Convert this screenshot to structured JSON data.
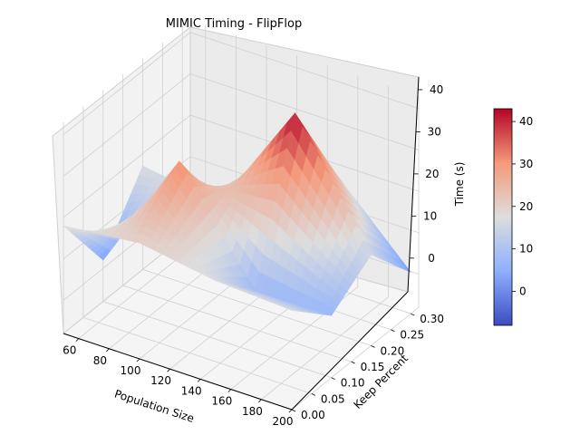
{
  "chart_data": {
    "type": "surface3d",
    "title": "MIMIC Timing - FlipFlop",
    "xlabel": "Population Size",
    "ylabel": "Keep Percent",
    "zlabel": "Time (s)",
    "x_ticks": [
      "60",
      "80",
      "100",
      "120",
      "140",
      "160",
      "180",
      "200"
    ],
    "y_ticks": [
      "0.00",
      "0.05",
      "0.10",
      "0.15",
      "0.20",
      "0.25",
      "0.30"
    ],
    "z_ticks": [
      "0",
      "10",
      "20",
      "30",
      "40"
    ],
    "colorbar_ticks": [
      "0",
      "10",
      "20",
      "30",
      "40"
    ],
    "colormap": "coolwarm",
    "xlim": [
      50,
      200
    ],
    "ylim": [
      0.0,
      0.32
    ],
    "zlim": [
      -8,
      43
    ],
    "grid": true,
    "colorbar": "right",
    "x": [
      50,
      100,
      150,
      200
    ],
    "y": [
      0.0,
      0.1,
      0.2,
      0.3
    ],
    "z": [
      [
        18,
        20,
        17,
        16
      ],
      [
        2,
        32,
        7,
        7
      ],
      [
        17,
        14,
        42,
        14
      ],
      [
        -7,
        14,
        20,
        2
      ]
    ],
    "colors": {
      "low": "#3b4cc0",
      "mid": "#dddddd",
      "high": "#b40426"
    }
  }
}
